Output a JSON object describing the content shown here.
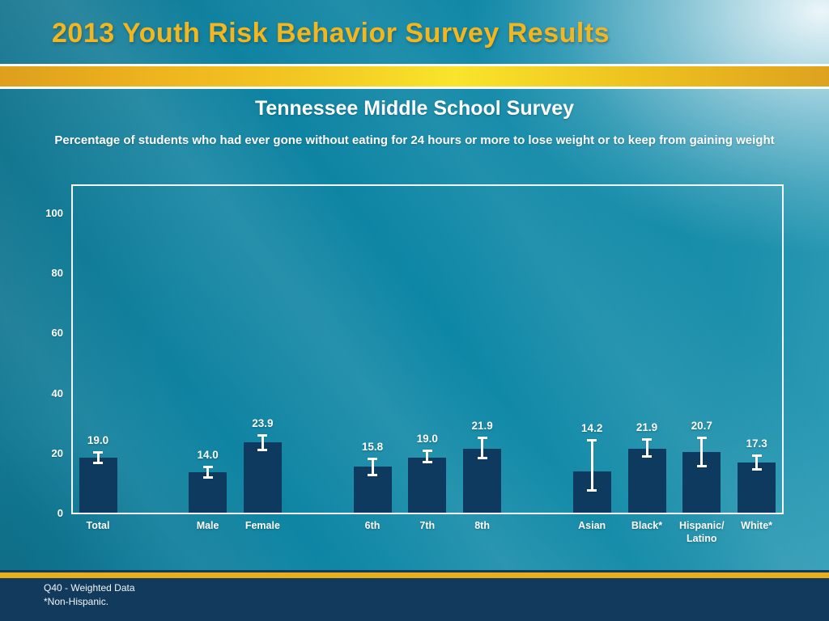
{
  "slide": {
    "header": {
      "title": "2013 Youth Risk Behavior Survey Results"
    },
    "chart_title": "Tennessee Middle School Survey",
    "chart_subtitle": "Percentage of students who had ever gone without eating for 24 hours or more to lose weight or to keep from gaining weight",
    "footnotes": [
      "Q40 - Weighted Data",
      "*Non-Hispanic."
    ]
  },
  "colors": {
    "background_teal": "#0d87a6",
    "bar_navy": "#0e3a5f",
    "title_gold": "#f2b71f",
    "gold_stripe": "#e9ae1b",
    "footer_navy": "#123a5c",
    "text_white": "#ffffff"
  },
  "chart_data": {
    "type": "bar",
    "title": "Tennessee Middle School Survey",
    "subtitle": "Percentage of students who had ever gone without eating for 24 hours or more to lose weight or to keep from gaining weight",
    "xlabel": "",
    "ylabel": "",
    "ylim": [
      0,
      110
    ],
    "yticks": [
      0,
      20,
      40,
      60,
      80,
      100
    ],
    "grid": false,
    "legend": false,
    "error_bars": true,
    "categories": [
      "Total",
      "Male",
      "Female",
      "6th",
      "7th",
      "8th",
      "Asian",
      "Black*",
      "Hispanic/Latino",
      "White*"
    ],
    "values": [
      19.0,
      14.0,
      23.9,
      15.8,
      19.0,
      21.9,
      14.2,
      21.9,
      20.7,
      17.3
    ],
    "bars": [
      {
        "label": "Total",
        "display_label": "Total",
        "value": 19.0,
        "ci_low": 17.0,
        "ci_high": 20.8,
        "slot": 0
      },
      {
        "label": "Male",
        "display_label": "Male",
        "value": 14.0,
        "ci_low": 12.2,
        "ci_high": 15.9,
        "slot": 2
      },
      {
        "label": "Female",
        "display_label": "Female",
        "value": 23.9,
        "ci_low": 21.3,
        "ci_high": 26.4,
        "slot": 3
      },
      {
        "label": "6th",
        "display_label": "6th",
        "value": 15.8,
        "ci_low": 12.9,
        "ci_high": 18.7,
        "slot": 5
      },
      {
        "label": "7th",
        "display_label": "7th",
        "value": 19.0,
        "ci_low": 17.3,
        "ci_high": 21.4,
        "slot": 6
      },
      {
        "label": "8th",
        "display_label": "8th",
        "value": 21.9,
        "ci_low": 18.7,
        "ci_high": 25.7,
        "slot": 7
      },
      {
        "label": "Asian",
        "display_label": "Asian",
        "value": 14.2,
        "ci_low": 7.7,
        "ci_high": 24.7,
        "slot": 9
      },
      {
        "label": "Black*",
        "display_label": "Black*",
        "value": 21.9,
        "ci_low": 19.1,
        "ci_high": 25.0,
        "slot": 10
      },
      {
        "label": "Hispanic/Latino",
        "display_label": "Hispanic/\nLatino",
        "value": 20.7,
        "ci_low": 16.0,
        "ci_high": 25.5,
        "slot": 11
      },
      {
        "label": "White*",
        "display_label": "White*",
        "value": 17.3,
        "ci_low": 14.7,
        "ci_high": 19.6,
        "slot": 12
      }
    ]
  }
}
